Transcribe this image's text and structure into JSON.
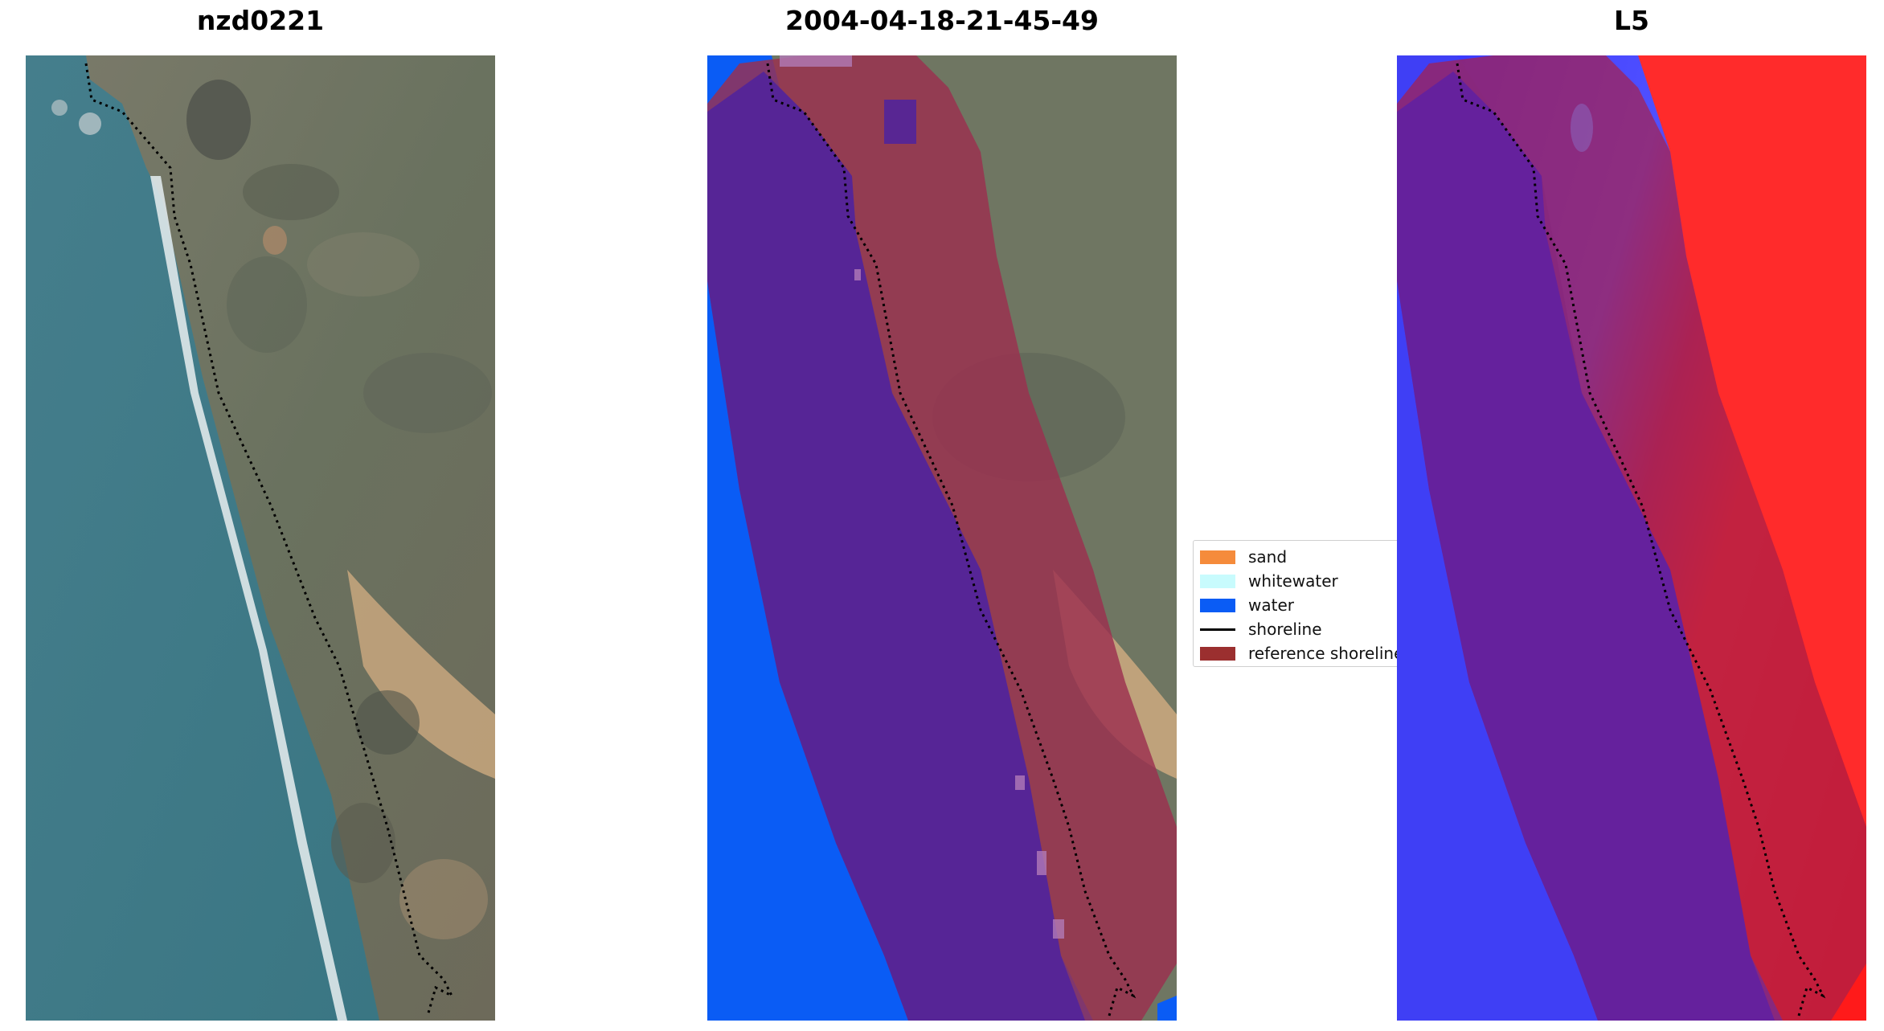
{
  "panels": [
    {
      "title": "nzd0221"
    },
    {
      "title": "2004-04-18-21-45-49"
    },
    {
      "title": "L5"
    }
  ],
  "legend": {
    "items": [
      {
        "label": "sand",
        "color": "#f58b3b",
        "kind": "patch"
      },
      {
        "label": "whitewater",
        "color": "#c8fbfd",
        "kind": "patch"
      },
      {
        "label": "water",
        "color": "#0a5cf5",
        "kind": "patch"
      },
      {
        "label": "shoreline",
        "color": "#000000",
        "kind": "line"
      },
      {
        "label": "reference shoreline",
        "color": "#9b2f2f",
        "kind": "patch"
      }
    ]
  },
  "colors": {
    "sea": "#3f7a87",
    "land": "#6f7662",
    "buffer_overlay": "#9b2f4f",
    "water_class": "#0a5cf5",
    "sand": "#c7a57d",
    "mndwi_blue": "#3a3aff",
    "mndwi_red": "#ff2a2a"
  }
}
